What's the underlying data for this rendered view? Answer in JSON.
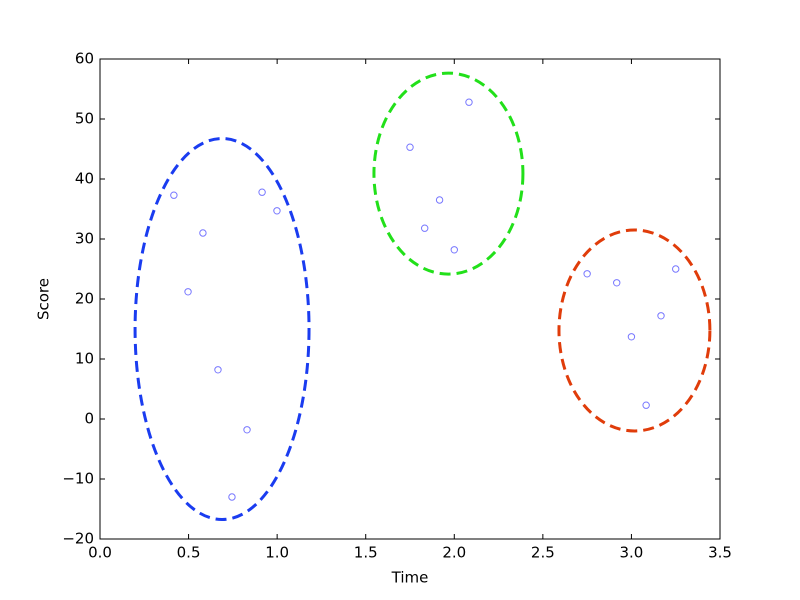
{
  "chart_data": {
    "type": "scatter",
    "x_label": "Time",
    "y_label": "Score",
    "x": [
      0.417,
      0.581,
      0.497,
      0.666,
      0.83,
      0.745,
      0.915,
      0.999,
      1.75,
      1.833,
      1.917,
      2.0,
      2.083,
      2.75,
      2.917,
      3.0,
      3.083,
      3.167,
      3.25
    ],
    "values": [
      37.3,
      31.0,
      21.2,
      8.2,
      -1.8,
      -13.0,
      37.8,
      34.7,
      45.3,
      31.8,
      36.5,
      28.2,
      52.8,
      24.2,
      22.7,
      13.7,
      2.3,
      17.2,
      25.0
    ],
    "color": "#7777ff",
    "ellipses": [
      {
        "color": "#1a3cf0",
        "center": [
          0.689,
          15.0
        ],
        "width": 0.982,
        "height": 63.5
      },
      {
        "color": "#22e01a",
        "center": [
          1.967,
          40.9
        ],
        "width": 0.841,
        "height": 33.5
      },
      {
        "color": "#e03c0a",
        "center": [
          3.017,
          14.75
        ],
        "width": 0.852,
        "height": 33.5
      }
    ],
    "xlim": [
      0,
      3.5
    ],
    "xticks": [
      {
        "value": 0,
        "label": "0.0"
      },
      {
        "value": 0.5,
        "label": "0.5"
      },
      {
        "value": 1,
        "label": "1.0"
      },
      {
        "value": 1.5,
        "label": "1.5"
      },
      {
        "value": 2,
        "label": "2.0"
      },
      {
        "value": 2.5,
        "label": "2.5"
      },
      {
        "value": 3,
        "label": "3.0"
      },
      {
        "value": 3.5,
        "label": "3.5"
      }
    ],
    "ylim": [
      -20,
      60
    ],
    "yticks": [
      {
        "value": -20,
        "label": "−20"
      },
      {
        "value": -10,
        "label": "−10"
      },
      0,
      10,
      20,
      30,
      40,
      50,
      60
    ]
  }
}
